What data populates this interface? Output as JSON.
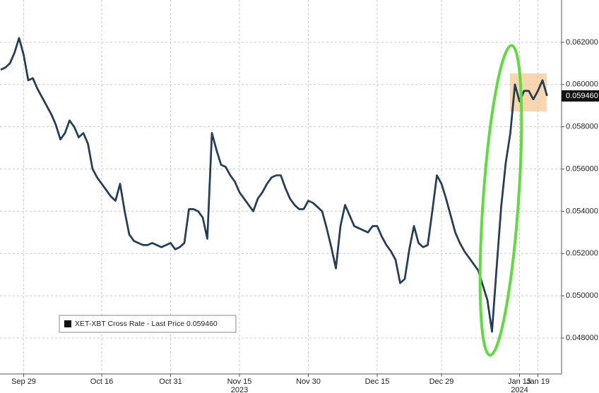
{
  "chart_data": {
    "type": "line",
    "categories": [
      null,
      null,
      null,
      null,
      null,
      "Sep 29",
      null,
      null,
      null,
      null,
      null,
      null,
      null,
      null,
      null,
      null,
      null,
      null,
      null,
      null,
      null,
      null,
      "Oct 16",
      null,
      null,
      null,
      null,
      null,
      null,
      null,
      null,
      null,
      null,
      null,
      null,
      null,
      null,
      "Oct 31",
      null,
      null,
      null,
      null,
      null,
      null,
      null,
      null,
      null,
      null,
      null,
      null,
      null,
      null,
      "Nov 15",
      null,
      null,
      null,
      null,
      null,
      null,
      null,
      null,
      null,
      null,
      null,
      null,
      null,
      null,
      "Nov 30",
      null,
      null,
      null,
      null,
      null,
      null,
      null,
      null,
      null,
      null,
      null,
      null,
      null,
      null,
      "Dec 15",
      null,
      null,
      null,
      null,
      null,
      null,
      null,
      null,
      null,
      null,
      null,
      null,
      null,
      "Dec 29",
      null,
      null,
      null,
      null,
      null,
      null,
      null,
      null,
      null,
      null,
      null,
      null,
      null,
      null,
      null,
      null,
      "Jan 15",
      null,
      null,
      null,
      "Jan 19",
      null,
      null
    ],
    "series": [
      {
        "name": "XET-XBT Cross Rate",
        "color": "#1f4f82",
        "values": [
          0.0607,
          0.0608,
          0.061,
          0.0615,
          0.0622,
          0.0614,
          0.0602,
          0.0603,
          0.0598,
          0.0594,
          0.059,
          0.0586,
          0.0581,
          0.0574,
          0.0577,
          0.0583,
          0.058,
          0.0575,
          0.0577,
          0.0572,
          0.056,
          0.0556,
          0.0553,
          0.055,
          0.0547,
          0.0545,
          0.0553,
          0.054,
          0.0529,
          0.0526,
          0.0525,
          0.0524,
          0.0524,
          0.0525,
          0.0524,
          0.0523,
          0.0524,
          0.0525,
          0.0522,
          0.0523,
          0.0525,
          0.0541,
          0.0541,
          0.054,
          0.0537,
          0.0527,
          0.0577,
          0.0569,
          0.0562,
          0.0561,
          0.0557,
          0.0554,
          0.0549,
          0.0546,
          0.0543,
          0.054,
          0.0546,
          0.0549,
          0.0553,
          0.0556,
          0.0557,
          0.0557,
          0.0551,
          0.0546,
          0.0543,
          0.0541,
          0.0541,
          0.0545,
          0.0544,
          0.0542,
          0.054,
          0.0532,
          0.0523,
          0.0513,
          0.0533,
          0.0543,
          0.0538,
          0.0533,
          0.0532,
          0.0531,
          0.053,
          0.0533,
          0.0533,
          0.0528,
          0.0524,
          0.0521,
          0.0517,
          0.0506,
          0.0508,
          0.0522,
          0.0533,
          0.0525,
          0.0523,
          0.0524,
          0.054,
          0.0557,
          0.0553,
          0.0546,
          0.0538,
          0.053,
          0.0525,
          0.0521,
          0.0518,
          0.0515,
          0.0512,
          0.0505,
          0.0498,
          0.0483,
          0.0513,
          0.0542,
          0.0563,
          0.0577,
          0.06,
          0.0592,
          0.0597,
          0.0597,
          0.0593,
          0.0597,
          0.0602,
          0.05946
        ]
      }
    ],
    "last_price_label": "Last Price",
    "last_price": {
      "value": 0.05946,
      "label": "0.059460"
    },
    "year_labels": [
      "2023",
      "2024"
    ],
    "ylim": [
      0.0463,
      0.064
    ],
    "yticks": [
      {
        "value": 0.048,
        "label": "0.048000"
      },
      {
        "value": 0.05,
        "label": "0.050000"
      },
      {
        "value": 0.052,
        "label": "0.052000"
      },
      {
        "value": 0.054,
        "label": "0.054000"
      },
      {
        "value": 0.056,
        "label": "0.056000"
      },
      {
        "value": 0.058,
        "label": "0.058000"
      },
      {
        "value": 0.06,
        "label": "0.060000"
      },
      {
        "value": 0.062,
        "label": "0.062000"
      }
    ],
    "grid": true
  }
}
